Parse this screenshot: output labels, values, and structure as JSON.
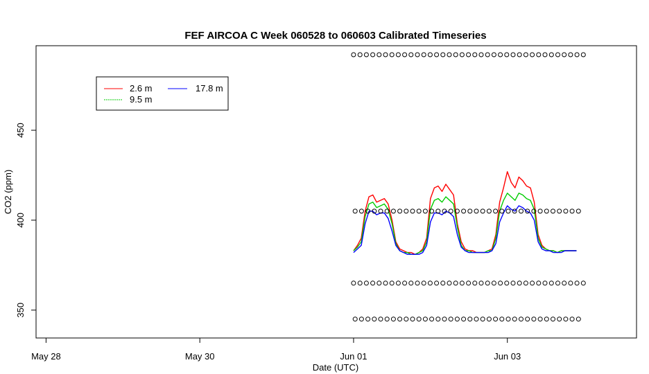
{
  "chart_data": {
    "type": "line",
    "title": "FEF AIRCOA C  Week 060528 to 060603  Calibrated Timeseries",
    "xlabel": "Date (UTC)",
    "ylabel": "CO2 (ppm)",
    "xlim_days": [
      27.87,
      35.68
    ],
    "ylim": [
      334.5,
      497
    ],
    "x_ticks": [
      {
        "day": 28,
        "label": "May 28"
      },
      {
        "day": 30,
        "label": "May 30"
      },
      {
        "day": 32,
        "label": "Jun 01"
      },
      {
        "day": 34,
        "label": "Jun 03"
      }
    ],
    "y_ticks": [
      350,
      400,
      450
    ],
    "grid": false,
    "legend": {
      "placement": "top-left",
      "entries": [
        {
          "name": "2.6 m",
          "color": "#ff0000"
        },
        {
          "name": "9.5 m",
          "color": "#00cc00"
        },
        {
          "name": "17.8 m",
          "color": "#0000ff"
        }
      ]
    },
    "series": [
      {
        "name": "2.6 m",
        "color": "#ff0000",
        "x": [
          32.0,
          32.05,
          32.1,
          32.15,
          32.2,
          32.25,
          32.3,
          32.35,
          32.4,
          32.45,
          32.5,
          32.55,
          32.6,
          32.65,
          32.7,
          32.75,
          32.8,
          32.85,
          32.9,
          32.95,
          33.0,
          33.05,
          33.1,
          33.15,
          33.2,
          33.25,
          33.3,
          33.35,
          33.4,
          33.45,
          33.5,
          33.55,
          33.6,
          33.65,
          33.7,
          33.75,
          33.8,
          33.85,
          33.9,
          33.95,
          34.0,
          34.05,
          34.1,
          34.15,
          34.2,
          34.25,
          34.3,
          34.35,
          34.4,
          34.45,
          34.5,
          34.55,
          34.6,
          34.65,
          34.7,
          34.75,
          34.8,
          34.85,
          34.9
        ],
        "y": [
          383,
          386,
          390,
          405,
          413,
          414,
          410,
          411,
          412,
          409,
          400,
          388,
          384,
          383,
          382,
          382,
          381,
          382,
          384,
          390,
          412,
          418,
          419,
          416,
          420,
          417,
          414,
          398,
          388,
          384,
          383,
          383,
          382,
          382,
          382,
          383,
          384,
          392,
          410,
          418,
          427,
          421,
          418,
          424,
          422,
          419,
          418,
          410,
          392,
          386,
          384,
          383,
          383,
          382,
          383,
          383,
          383,
          383,
          383
        ]
      },
      {
        "name": "9.5 m",
        "color": "#00cc00",
        "x": [
          32.0,
          32.05,
          32.1,
          32.15,
          32.2,
          32.25,
          32.3,
          32.35,
          32.4,
          32.45,
          32.5,
          32.55,
          32.6,
          32.65,
          32.7,
          32.75,
          32.8,
          32.85,
          32.9,
          32.95,
          33.0,
          33.05,
          33.1,
          33.15,
          33.2,
          33.25,
          33.3,
          33.35,
          33.4,
          33.45,
          33.5,
          33.55,
          33.6,
          33.65,
          33.7,
          33.75,
          33.8,
          33.85,
          33.9,
          33.95,
          34.0,
          34.05,
          34.1,
          34.15,
          34.2,
          34.25,
          34.3,
          34.35,
          34.4,
          34.45,
          34.5,
          34.55,
          34.6,
          34.65,
          34.7,
          34.75,
          34.8,
          34.85,
          34.9
        ],
        "y": [
          383,
          385,
          388,
          402,
          409,
          410,
          407,
          408,
          409,
          406,
          398,
          387,
          383,
          382,
          382,
          381,
          381,
          382,
          383,
          388,
          406,
          411,
          412,
          410,
          413,
          411,
          409,
          396,
          386,
          383,
          383,
          382,
          382,
          382,
          382,
          383,
          383,
          390,
          405,
          411,
          415,
          413,
          411,
          415,
          414,
          412,
          411,
          406,
          390,
          385,
          384,
          383,
          383,
          382,
          383,
          383,
          383,
          383,
          383
        ]
      },
      {
        "name": "17.8 m",
        "color": "#0000ff",
        "x": [
          32.0,
          32.05,
          32.1,
          32.15,
          32.2,
          32.25,
          32.3,
          32.35,
          32.4,
          32.45,
          32.5,
          32.55,
          32.6,
          32.65,
          32.7,
          32.75,
          32.8,
          32.85,
          32.9,
          32.95,
          33.0,
          33.05,
          33.1,
          33.15,
          33.2,
          33.25,
          33.3,
          33.35,
          33.4,
          33.45,
          33.5,
          33.55,
          33.6,
          33.65,
          33.7,
          33.75,
          33.8,
          33.85,
          33.9,
          33.95,
          34.0,
          34.05,
          34.1,
          34.15,
          34.2,
          34.25,
          34.3,
          34.35,
          34.4,
          34.45,
          34.5,
          34.55,
          34.6,
          34.65,
          34.7,
          34.75,
          34.8,
          34.85,
          34.9
        ],
        "y": [
          382,
          384,
          386,
          398,
          405,
          405,
          403,
          404,
          404,
          401,
          394,
          386,
          383,
          382,
          381,
          381,
          381,
          381,
          382,
          386,
          399,
          404,
          404,
          403,
          405,
          404,
          402,
          392,
          385,
          383,
          382,
          382,
          382,
          382,
          382,
          382,
          383,
          387,
          399,
          404,
          408,
          406,
          405,
          408,
          407,
          405,
          404,
          400,
          388,
          384,
          383,
          383,
          382,
          382,
          382,
          383,
          383,
          383,
          383
        ]
      },
      {
        "name": "",
        "kind": "calibration points",
        "marker": "circle",
        "color": "#000000",
        "levels": [
          492,
          405,
          365,
          345
        ],
        "x_start": 32.0,
        "x_end": 35.0,
        "step": 0.083
      }
    ]
  }
}
